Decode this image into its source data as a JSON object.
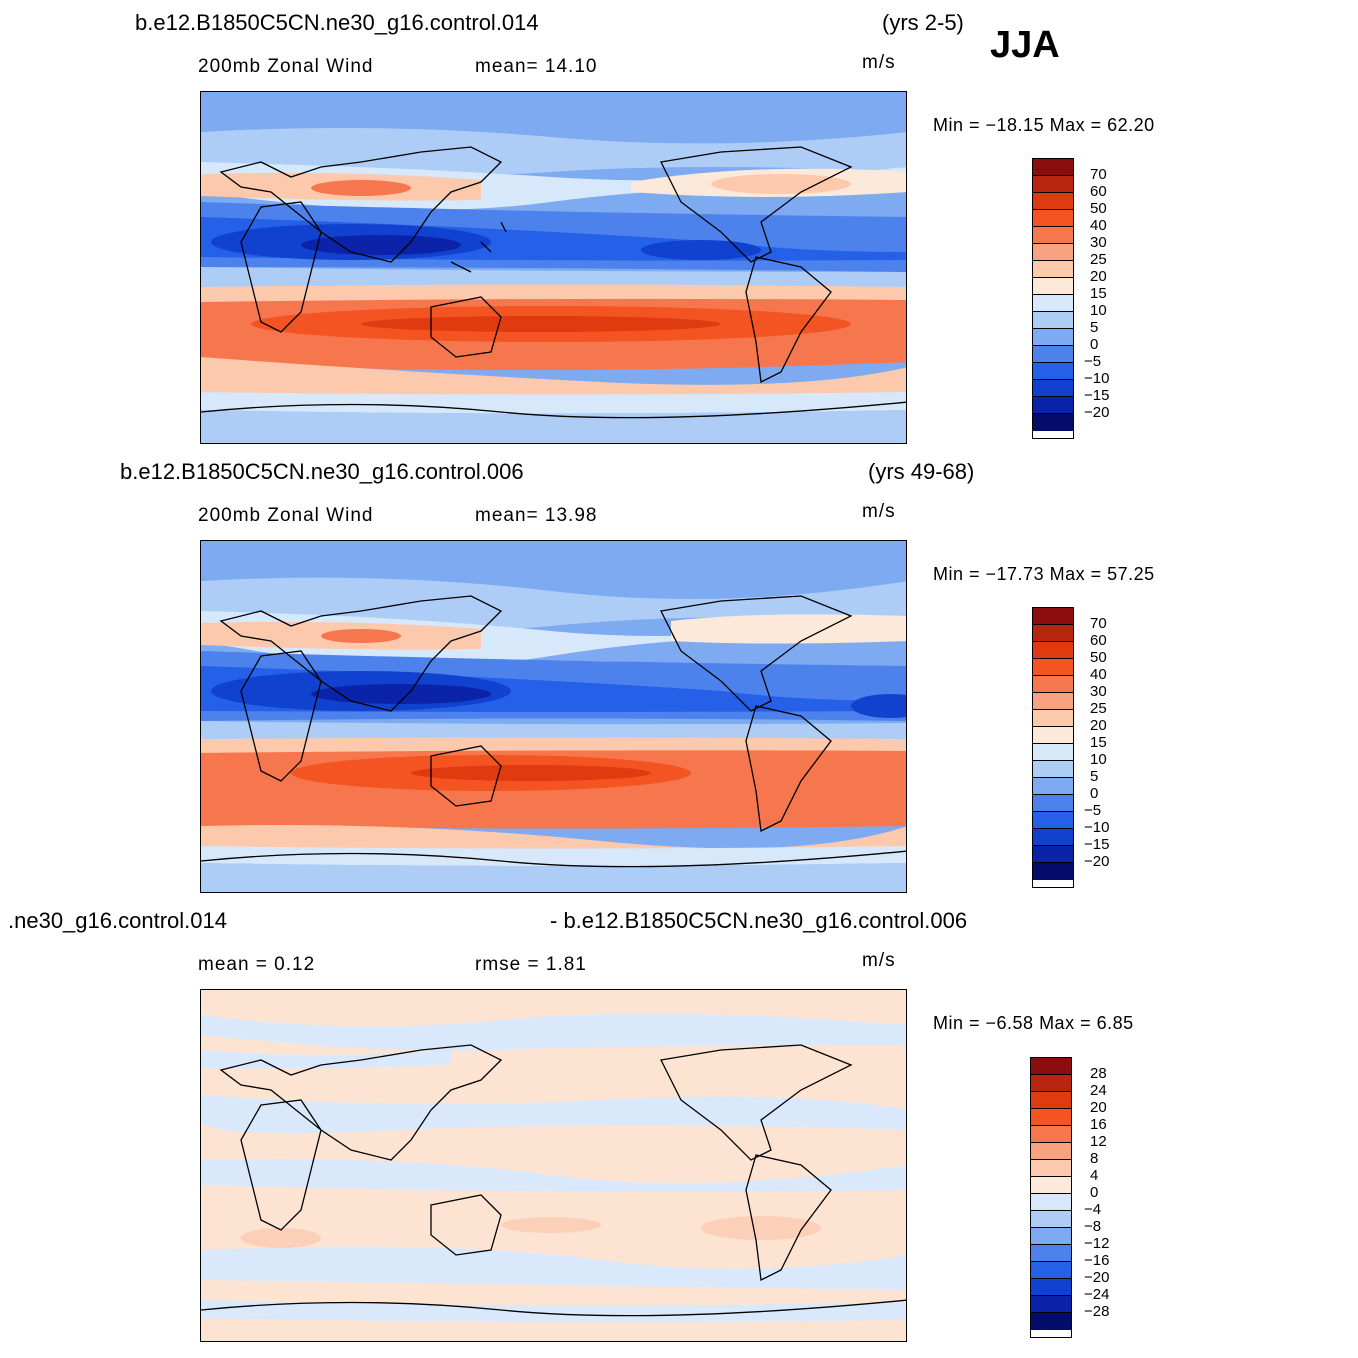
{
  "season": "JJA",
  "panels": [
    {
      "case": "b.e12.B1850C5CN.ne30_g16.control.014",
      "years": "(yrs 2-5)",
      "variable": "200mb  Zonal Wind",
      "stat1": "mean=   14.10",
      "stat2": "",
      "units": "m/s",
      "minmax": "Min  =  −18.15  Max  =    62.20",
      "colorbar_labels": [
        "70",
        "60",
        "50",
        "40",
        "30",
        "25",
        "20",
        "15",
        "10",
        "5",
        "0",
        "−5",
        "−10",
        "−15",
        "−20"
      ]
    },
    {
      "case": "b.e12.B1850C5CN.ne30_g16.control.006",
      "years": "(yrs 49-68)",
      "variable": "200mb  Zonal Wind",
      "stat1": "mean=   13.98",
      "stat2": "",
      "units": "m/s",
      "minmax": "Min  =  −17.73  Max  =    57.25",
      "colorbar_labels": [
        "70",
        "60",
        "50",
        "40",
        "30",
        "25",
        "20",
        "15",
        "10",
        "5",
        "0",
        "−5",
        "−10",
        "−15",
        "−20"
      ]
    },
    {
      "case": ".ne30_g16.control.014",
      "years": "- b.e12.B1850C5CN.ne30_g16.control.006",
      "variable": "mean  =     0.12",
      "stat1": "rmse  =     1.81",
      "stat2": "",
      "units": "m/s",
      "minmax": "Min  =    −6.58  Max  =      6.85",
      "colorbar_labels": [
        "28",
        "24",
        "20",
        "16",
        "12",
        "8",
        "4",
        "0",
        "−4",
        "−8",
        "−12",
        "−16",
        "−20",
        "−24",
        "−28"
      ]
    }
  ],
  "colors": {
    "cb": [
      "#8b0d0d",
      "#b82511",
      "#df3a10",
      "#f45322",
      "#f6774d",
      "#f9a27f",
      "#fcc9ad",
      "#fde9d9",
      "#d6e8fa",
      "#adcdf7",
      "#7eaaf2",
      "#4d82ec",
      "#2561e8",
      "#1141cf",
      "#0a23a8",
      "#030c6b"
    ],
    "diff_pos": "#fde4d2",
    "diff_neg": "#d9e8fa"
  }
}
